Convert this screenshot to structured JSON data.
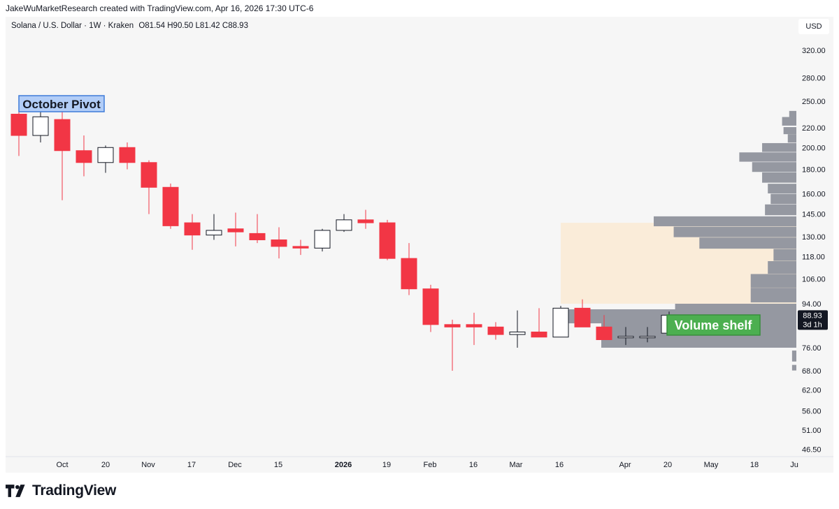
{
  "header": {
    "caption": "JakeWuMarketResearch created with TradingView.com, Apr 16, 2026 17:30 UTC-6"
  },
  "chart_data": {
    "type": "candlestick",
    "title": "Solana / U.S. Dollar · 1W · Kraken",
    "ohlc_text": "O81.54  H90.50  L81.42  C88.93",
    "currency": "USD",
    "price_scale": "log",
    "y_ticks": [
      320,
      280,
      250,
      220,
      200,
      180,
      160,
      145,
      130,
      118,
      106,
      94,
      76,
      68,
      62,
      56,
      51,
      46.5
    ],
    "y_tick_labels": [
      "320.00",
      "280.00",
      "250.00",
      "220.00",
      "200.00",
      "180.00",
      "160.00",
      "145.00",
      "130.00",
      "118.00",
      "106.00",
      "94.00",
      "76.00",
      "68.00",
      "62.00",
      "56.00",
      "51.00",
      "46.50"
    ],
    "x_labels": [
      "Oct",
      "20",
      "Nov",
      "17",
      "Dec",
      "15",
      "2026",
      "19",
      "Feb",
      "16",
      "Mar",
      "16",
      "Apr",
      "20",
      "May",
      "18",
      "Ju"
    ],
    "up_color": "#ffffff",
    "down_color": "#f23645",
    "candles": [
      {
        "d": "2025-09-08",
        "o": 235,
        "h": 255,
        "l": 192,
        "c": 212
      },
      {
        "d": "2025-09-15",
        "o": 212,
        "h": 238,
        "l": 205,
        "c": 232
      },
      {
        "d": "2025-09-22",
        "o": 229,
        "h": 240,
        "l": 155,
        "c": 197
      },
      {
        "d": "2025-09-29",
        "o": 197,
        "h": 212,
        "l": 174,
        "c": 186
      },
      {
        "d": "2025-10-06",
        "o": 186,
        "h": 202,
        "l": 177,
        "c": 200
      },
      {
        "d": "2025-10-13",
        "o": 200,
        "h": 205,
        "l": 180,
        "c": 186
      },
      {
        "d": "2025-10-20",
        "o": 186,
        "h": 188,
        "l": 145,
        "c": 165
      },
      {
        "d": "2025-10-27",
        "o": 165,
        "h": 168,
        "l": 135,
        "c": 137
      },
      {
        "d": "2025-11-03",
        "o": 139,
        "h": 145,
        "l": 122,
        "c": 131
      },
      {
        "d": "2025-11-10",
        "o": 131,
        "h": 145,
        "l": 128,
        "c": 134
      },
      {
        "d": "2025-11-17",
        "o": 135,
        "h": 146,
        "l": 124,
        "c": 133
      },
      {
        "d": "2025-11-24",
        "o": 132,
        "h": 145,
        "l": 126,
        "c": 128
      },
      {
        "d": "2025-12-01",
        "o": 128,
        "h": 136,
        "l": 117,
        "c": 124
      },
      {
        "d": "2025-12-08",
        "o": 124,
        "h": 128,
        "l": 119,
        "c": 123
      },
      {
        "d": "2025-12-15",
        "o": 123,
        "h": 135,
        "l": 121,
        "c": 134
      },
      {
        "d": "2025-12-22",
        "o": 134,
        "h": 145,
        "l": 133,
        "c": 141
      },
      {
        "d": "2025-12-29",
        "o": 141,
        "h": 148,
        "l": 135,
        "c": 139
      },
      {
        "d": "2026-01-05",
        "o": 139,
        "h": 141,
        "l": 116,
        "c": 117
      },
      {
        "d": "2026-01-12",
        "o": 117,
        "h": 126,
        "l": 98,
        "c": 101
      },
      {
        "d": "2026-01-19",
        "o": 101,
        "h": 103,
        "l": 82,
        "c": 85
      },
      {
        "d": "2026-01-26",
        "o": 85,
        "h": 87,
        "l": 68,
        "c": 84
      },
      {
        "d": "2026-02-02",
        "o": 85,
        "h": 90,
        "l": 77,
        "c": 84
      },
      {
        "d": "2026-02-09",
        "o": 84,
        "h": 86,
        "l": 79,
        "c": 81
      },
      {
        "d": "2026-02-16",
        "o": 81,
        "h": 91,
        "l": 76,
        "c": 82
      },
      {
        "d": "2026-02-23",
        "o": 82,
        "h": 92,
        "l": 80,
        "c": 80
      },
      {
        "d": "2026-03-02",
        "o": 80,
        "h": 93,
        "l": 80,
        "c": 92
      },
      {
        "d": "2026-03-09",
        "o": 92,
        "h": 96,
        "l": 84,
        "c": 84
      },
      {
        "d": "2026-03-16",
        "o": 84,
        "h": 89,
        "l": 79,
        "c": 79
      },
      {
        "d": "2026-03-23",
        "o": 80,
        "h": 84,
        "l": 77,
        "c": 80
      },
      {
        "d": "2026-03-30",
        "o": 80,
        "h": 84,
        "l": 78,
        "c": 80
      },
      {
        "d": "2026-04-06",
        "o": 81.54,
        "h": 90.5,
        "l": 81.42,
        "c": 88.93
      }
    ],
    "last_price": {
      "value": "88.93",
      "countdown": "3d 1h",
      "color": "#131722"
    },
    "volume_profile": {
      "color": "#9598a1",
      "bins": [
        {
          "price": 235,
          "rel": 0.05
        },
        {
          "price": 227,
          "rel": 0.1
        },
        {
          "price": 217,
          "rel": 0.09
        },
        {
          "price": 209,
          "rel": 0.06
        },
        {
          "price": 200,
          "rel": 0.24
        },
        {
          "price": 191,
          "rel": 0.4
        },
        {
          "price": 182,
          "rel": 0.31
        },
        {
          "price": 173,
          "rel": 0.24
        },
        {
          "price": 164,
          "rel": 0.2
        },
        {
          "price": 156,
          "rel": 0.18
        },
        {
          "price": 148,
          "rel": 0.22
        },
        {
          "price": 140,
          "rel": 1.0
        },
        {
          "price": 133,
          "rel": 0.86
        },
        {
          "price": 126,
          "rel": 0.68
        },
        {
          "price": 119,
          "rel": 0.16
        },
        {
          "price": 112,
          "rel": 0.2
        },
        {
          "price": 105,
          "rel": 0.32
        },
        {
          "price": 98,
          "rel": 0.32
        },
        {
          "price": 91,
          "rel": 0.85
        },
        {
          "price": 85,
          "rel": 0.82
        },
        {
          "price": 79,
          "rel": 0.79
        },
        {
          "price": 73,
          "rel": 0.03
        },
        {
          "price": 69,
          "rel": 0.03
        }
      ]
    },
    "annotations": {
      "october_pivot": {
        "text": "October Pivot",
        "bg": "#b2cdf7",
        "border": "#3e7bd8",
        "color": "#131722"
      },
      "volume_shelf": {
        "text": "Volume shelf",
        "bg": "#4caf50",
        "border": "#388e3c",
        "color": "#ffffff"
      },
      "zone": {
        "from": 94,
        "to": 139,
        "color": "#faecd9"
      }
    }
  },
  "footer": {
    "brand": "TradingView"
  }
}
